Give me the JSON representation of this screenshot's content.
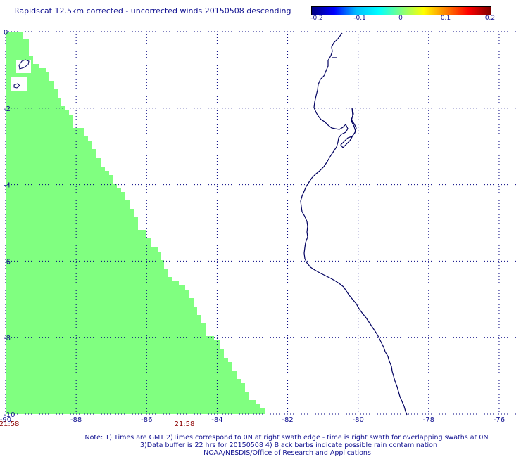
{
  "title": "Rapidscat 12.5km corrected - uncorrected winds 20150508 descending",
  "colorbar": {
    "ticks": [
      "-0.2",
      "-0.1",
      "0",
      "0.1",
      "0.2"
    ],
    "gradient": [
      "#000080",
      "#0000ff",
      "#00bfff",
      "#00ffff",
      "#80ff80",
      "#ffff00",
      "#ff8000",
      "#ff0000",
      "#800000"
    ]
  },
  "map": {
    "lon_range": [
      -90,
      -75.5
    ],
    "lat_range": [
      -10,
      0
    ],
    "x_ticks": [
      "-90",
      "-88",
      "-86",
      "-84",
      "-82",
      "-80",
      "-78",
      "-76"
    ],
    "y_ticks": [
      "0",
      "-2",
      "-4",
      "-6",
      "-8",
      "-10"
    ],
    "swath_color": "#80ff80",
    "coast_color": "#000060",
    "grid": true,
    "time_labels": [
      "21:58",
      "21:58"
    ]
  },
  "notes": [
    "Note: 1) Times are GMT 2)Times correspond to 0N at right swath edge - time is right swath for overlapping swaths at 0N",
    "3)Data buffer is 22 hrs for 20150508 4) Black barbs indicate possible rain contamination",
    "NOAA/NESDIS/Office of Research and Applications"
  ]
}
